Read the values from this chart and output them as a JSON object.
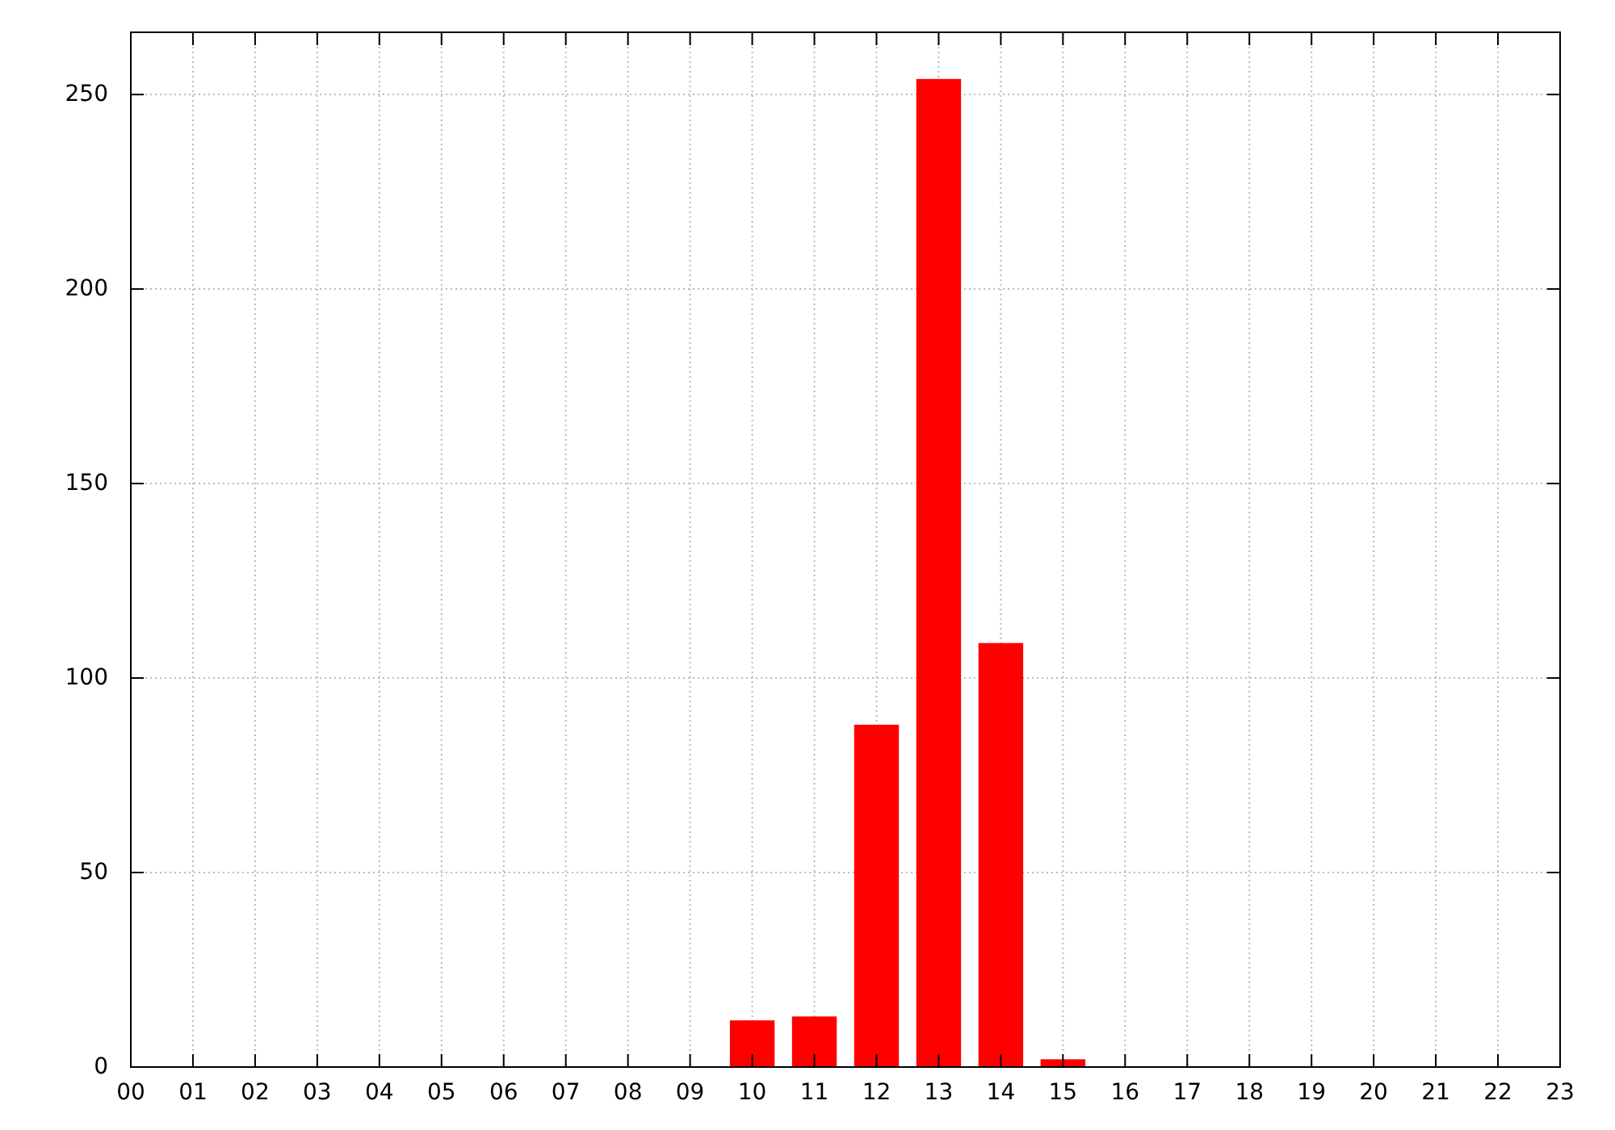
{
  "chart_data": {
    "type": "bar",
    "categories": [
      "00",
      "01",
      "02",
      "03",
      "04",
      "05",
      "06",
      "07",
      "08",
      "09",
      "10",
      "11",
      "12",
      "13",
      "14",
      "15",
      "16",
      "17",
      "18",
      "19",
      "20",
      "21",
      "22",
      "23"
    ],
    "values": [
      0,
      0,
      0,
      0,
      0,
      0,
      0,
      0,
      0,
      0,
      12,
      13,
      88,
      254,
      109,
      2,
      0,
      0,
      0,
      0,
      0,
      0,
      0,
      0
    ],
    "color": "#ff0000",
    "ylim": [
      0,
      266
    ],
    "yticks": [
      0,
      50,
      100,
      150,
      200,
      250
    ],
    "grid": true
  }
}
